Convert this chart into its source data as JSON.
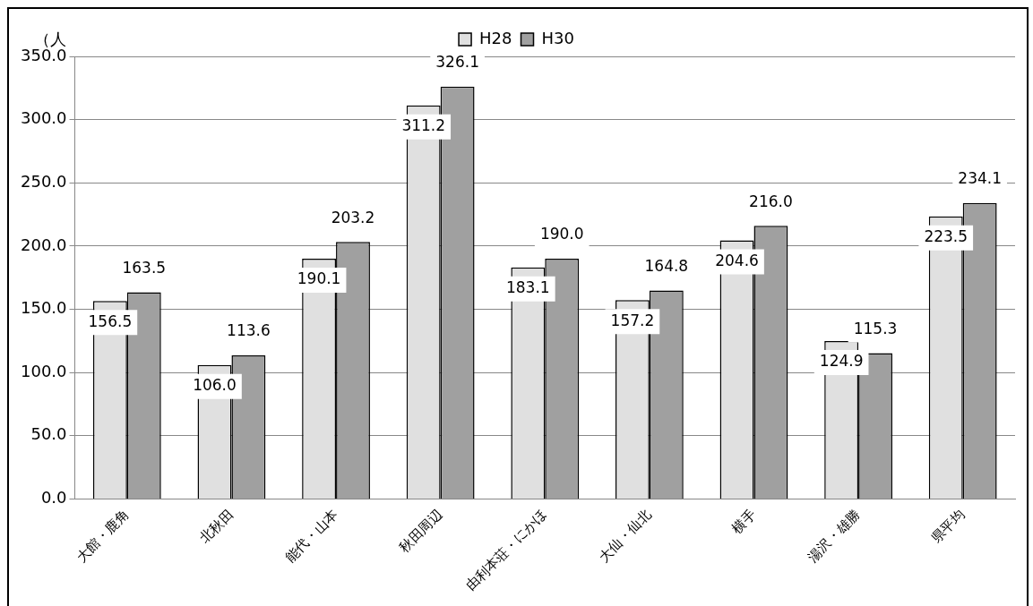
{
  "chart_data": {
    "type": "bar",
    "ylabel": "（人",
    "categories": [
      "大館・鹿角",
      "北秋田",
      "能代・山本",
      "秋田周辺",
      "由利本荘・にかほ",
      "大仙・仙北",
      "横手",
      "湯沢・雄勝",
      "県平均"
    ],
    "series": [
      {
        "name": "H28",
        "color": "#e0e0e0",
        "values": [
          156.5,
          106.0,
          190.1,
          311.2,
          183.1,
          157.2,
          204.6,
          124.9,
          223.5
        ],
        "value_labels": [
          "156.5",
          "106.0",
          "190.1",
          "311.2",
          "183.1",
          "157.2",
          "204.6",
          "124.9",
          "223.5"
        ]
      },
      {
        "name": "H30",
        "color": "#a0a0a0",
        "values": [
          163.5,
          113.6,
          203.2,
          326.1,
          190.0,
          164.8,
          216.0,
          115.3,
          234.1
        ],
        "value_labels": [
          "163.5",
          "113.6",
          "203.2",
          "326.1",
          "190.0",
          "164.8",
          "216.0",
          "115.3",
          "234.1"
        ]
      }
    ],
    "ylim": [
      0,
      350
    ],
    "yticks": [
      {
        "value": 0,
        "label": "0.0"
      },
      {
        "value": 50,
        "label": "50.0"
      },
      {
        "value": 100,
        "label": "100.0"
      },
      {
        "value": 150,
        "label": "150.0"
      },
      {
        "value": 200,
        "label": "200.0"
      },
      {
        "value": 250,
        "label": "250.0"
      },
      {
        "value": 300,
        "label": "300.0"
      },
      {
        "value": 350,
        "label": "350.0"
      }
    ],
    "grid": "y",
    "legend": "top"
  }
}
